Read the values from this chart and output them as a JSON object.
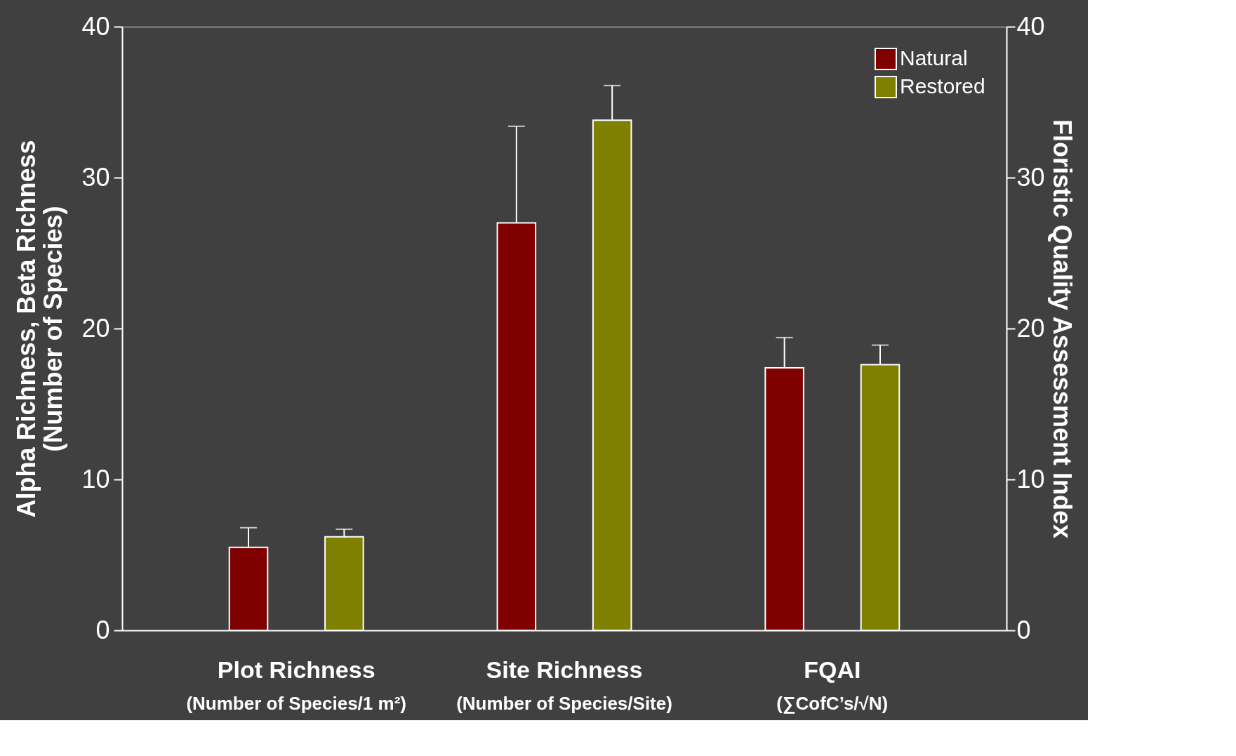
{
  "chart_data": {
    "type": "bar",
    "categories": [
      "Plot Richness",
      "Site Richness",
      "FQAI"
    ],
    "series": [
      {
        "name": "Natural",
        "color": "#800000",
        "values": [
          5.5,
          27.0,
          17.4
        ],
        "errors": [
          [
            5.5,
            6.8
          ],
          [
            27.0,
            33.4
          ],
          [
            17.4,
            19.4
          ]
        ]
      },
      {
        "name": "Restored",
        "color": "#808000",
        "values": [
          6.2,
          33.8,
          17.6
        ],
        "errors": [
          [
            6.2,
            6.7
          ],
          [
            33.8,
            36.1
          ],
          [
            17.6,
            18.9
          ]
        ]
      }
    ],
    "ylabel": "Alpha Richness, Beta Richness\n(Number of Species)",
    "y2label": "Floristic Quality Assessment Index",
    "ylim": [
      0,
      40
    ],
    "yticks": [
      0,
      10,
      20,
      30,
      40
    ],
    "y2lim": [
      0,
      40
    ],
    "y2ticks": [
      0,
      10,
      20,
      30,
      40
    ],
    "annotations": [
      "(Number of Species/1 m²)",
      "(Number of Species/Site)",
      "(∑CofC’s/√N)"
    ],
    "legend": "top right",
    "grid": false
  }
}
